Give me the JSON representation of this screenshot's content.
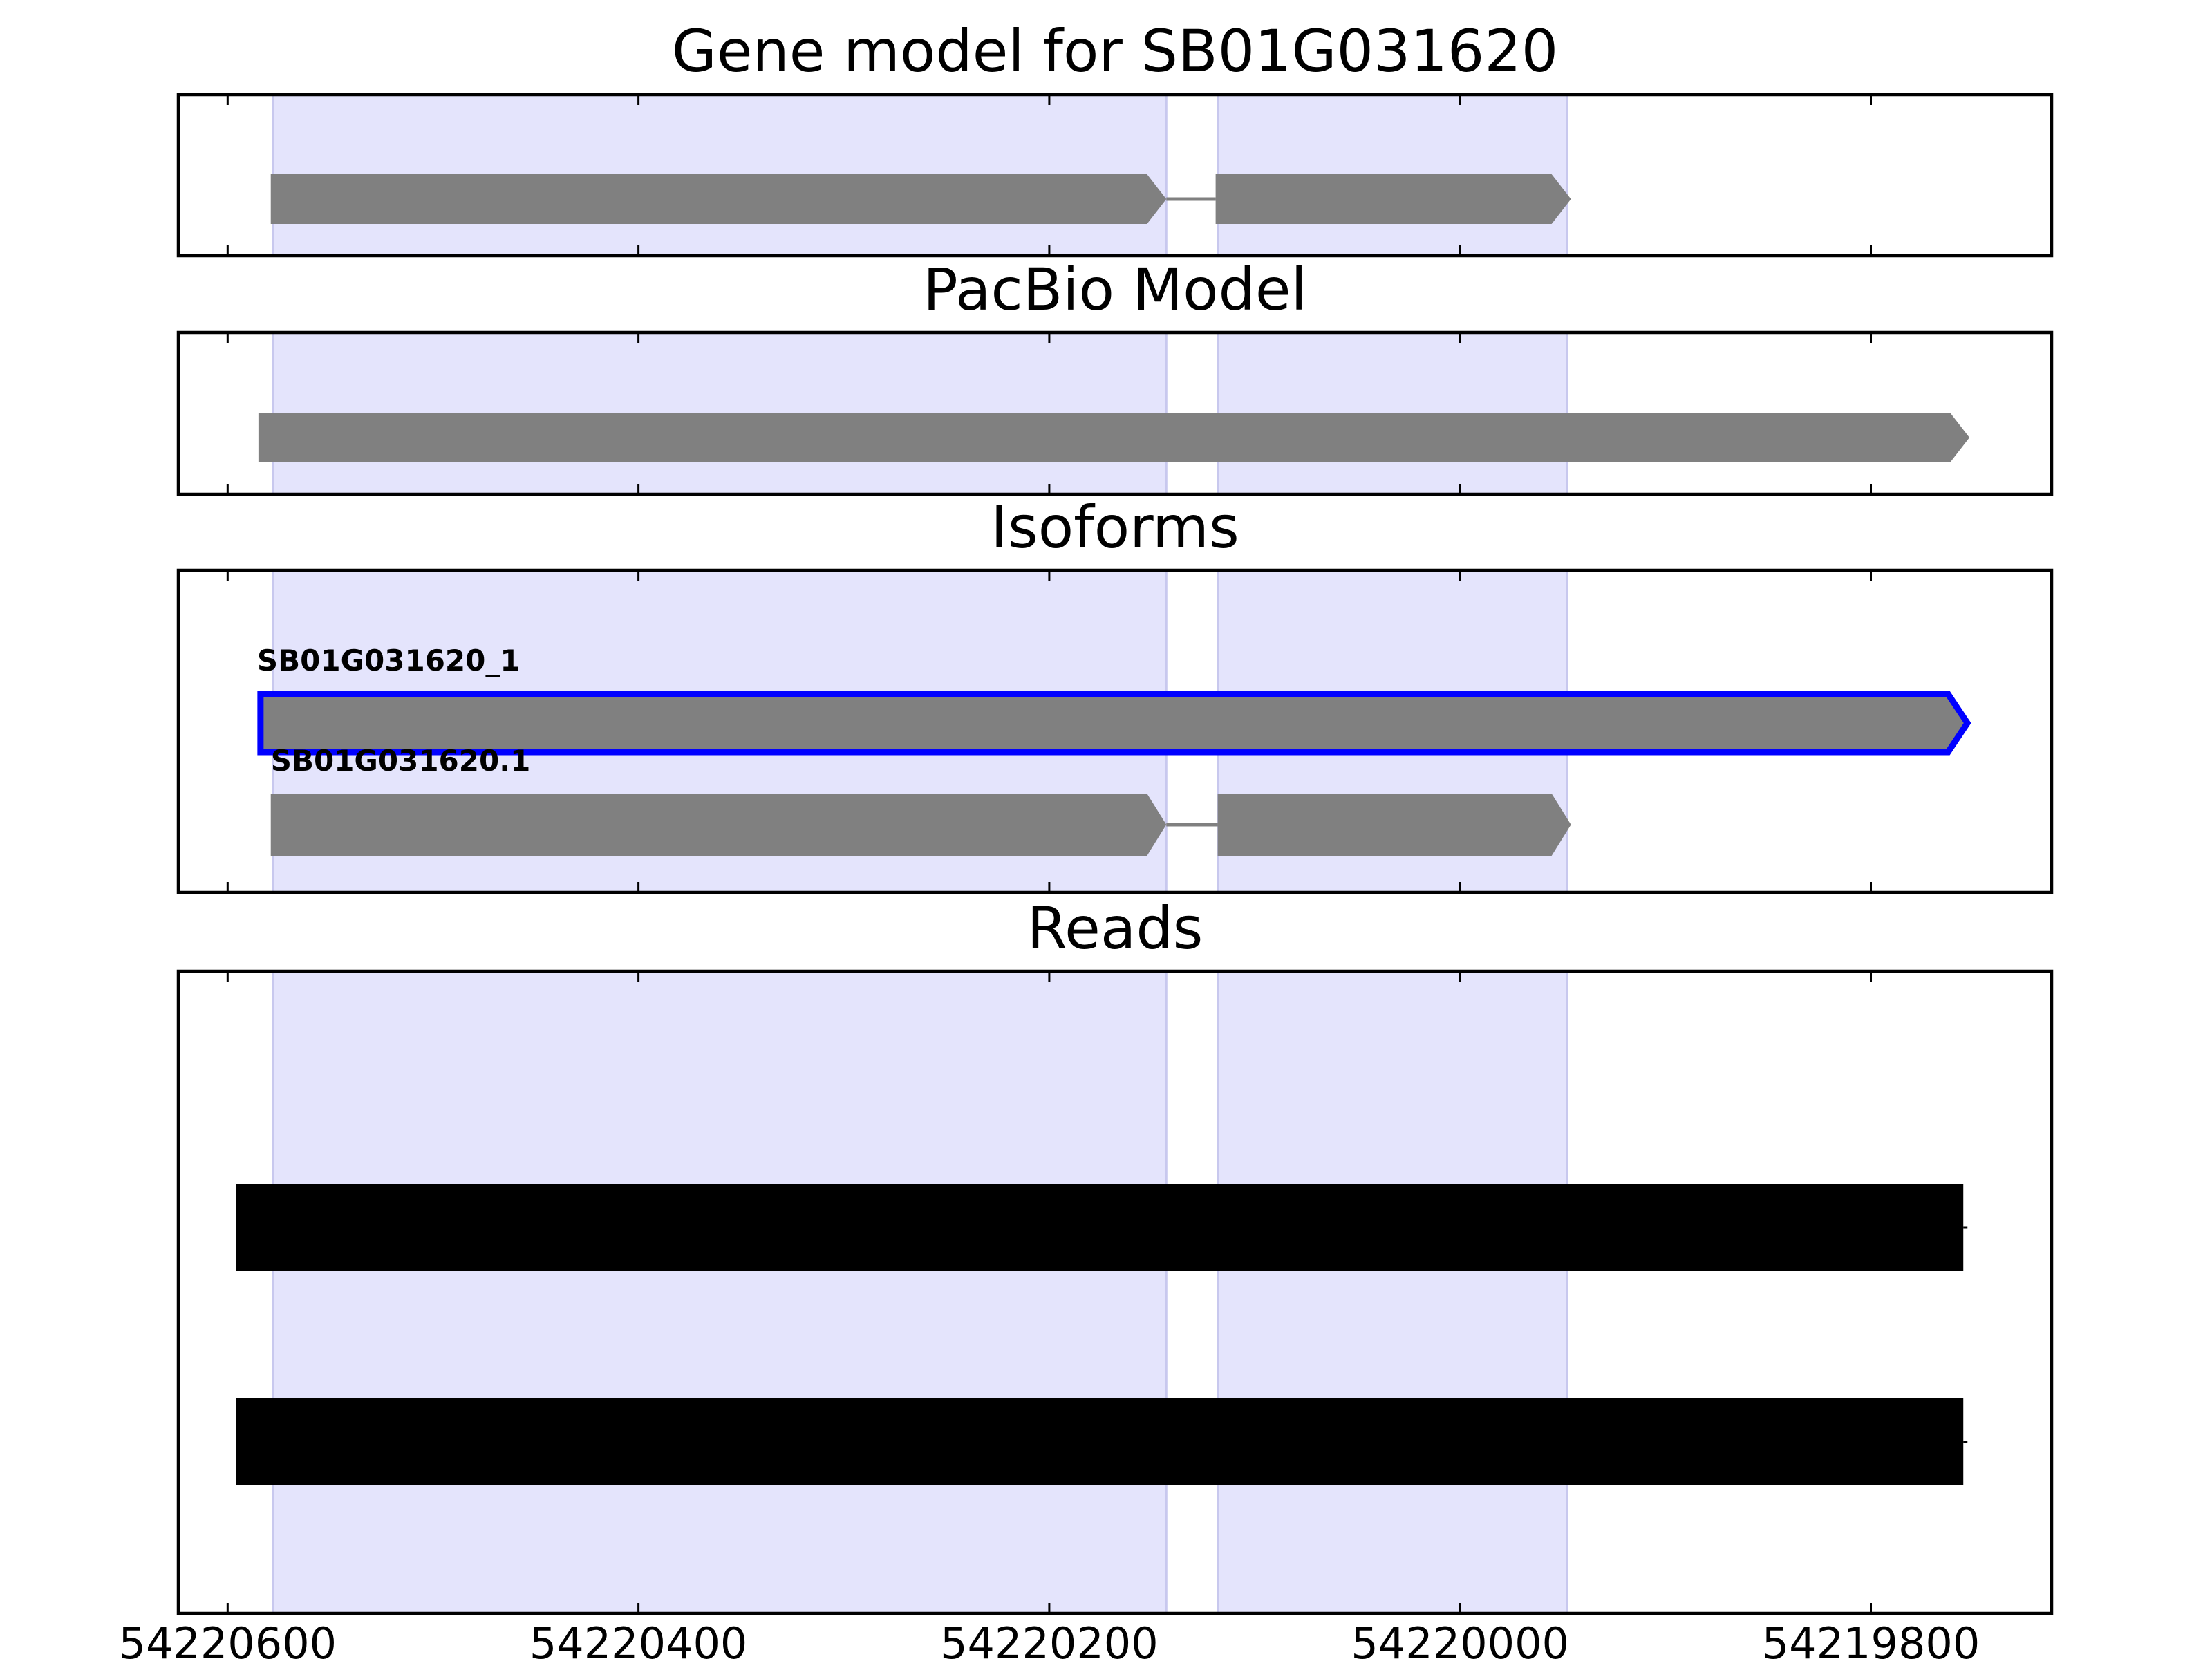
{
  "chart_data": {
    "type": "gene-track",
    "x_axis": {
      "lim": [
        54220624,
        54219712
      ],
      "ticks": [
        54220600,
        54220400,
        54220200,
        54220000,
        54219800
      ],
      "tick_labels": [
        "54220600",
        "54220400",
        "54220200",
        54220000,
        "54219800"
      ]
    },
    "shaded_regions": [
      {
        "start": 54220578,
        "end": 54220143
      },
      {
        "start": 54220118,
        "end": 54219948
      }
    ],
    "shade_color": "#e4e4fc",
    "feature_color": "#808080",
    "highlight_color": "#0000ff",
    "read_color": "#000000",
    "panels": [
      {
        "title": "Gene model for SB01G031620",
        "features": [
          {
            "exons": [
              [
                54220579,
                54220143
              ],
              [
                54220119,
                54219946
              ]
            ],
            "strand": "-"
          }
        ]
      },
      {
        "title": "PacBio Model",
        "features": [
          {
            "exons": [
              [
                54220585,
                54219752
              ]
            ],
            "strand": "-"
          }
        ]
      },
      {
        "title": "Isoforms",
        "features": [
          {
            "label": "SB01G031620_1",
            "exons": [
              [
                54220584,
                54219753
              ]
            ],
            "strand": "-",
            "highlight": true
          },
          {
            "label": "SB01G031620.1",
            "exons": [
              [
                54220579,
                54220143
              ],
              [
                54220118,
                54219946
              ]
            ],
            "strand": "-",
            "highlight": false
          }
        ]
      },
      {
        "title": "Reads",
        "reads": [
          {
            "start": 54220596,
            "end": 54219755
          },
          {
            "start": 54220596,
            "end": 54219755
          }
        ]
      }
    ]
  }
}
